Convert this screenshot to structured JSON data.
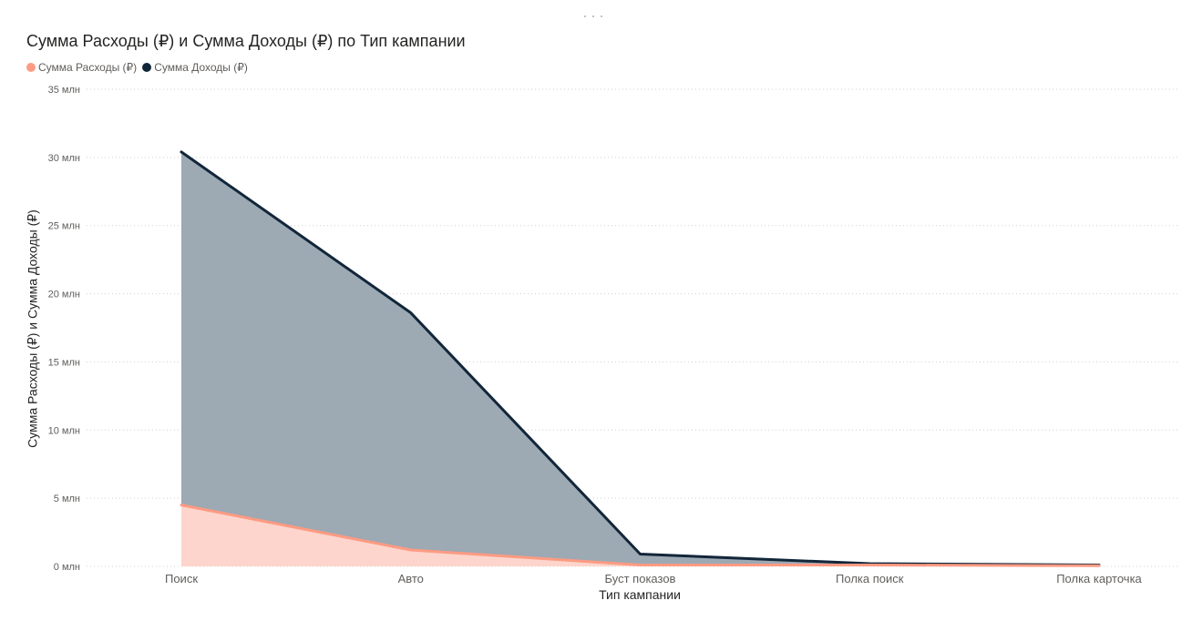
{
  "visual": {
    "title": "Сумма Расходы (₽) и Сумма Доходы (₽) по Тип кампании"
  },
  "chart_data": {
    "type": "area",
    "title": "Сумма Расходы (₽) и Сумма Доходы (₽) по Тип кампании",
    "xlabel": "Тип кампании",
    "ylabel": "Сумма Расходы (₽) и Сумма Доходы (₽)",
    "categories": [
      "Поиск",
      "Авто",
      "Буст показов",
      "Полка поиск",
      "Полка карточка"
    ],
    "series": [
      {
        "name": "Сумма Расходы (₽)",
        "values": [
          4500000,
          1200000,
          100000,
          100000,
          50000
        ],
        "color": "#FD9B83",
        "fill": "#FDD5CC"
      },
      {
        "name": "Сумма Доходы (₽)",
        "values": [
          30400000,
          18600000,
          900000,
          200000,
          100000
        ],
        "color": "#12263A",
        "fill": "#9DA9B3"
      }
    ],
    "ylim": [
      0,
      35000000
    ],
    "yticks": [
      0,
      5000000,
      10000000,
      15000000,
      20000000,
      25000000,
      30000000,
      35000000
    ],
    "ytick_labels": [
      "0 млн",
      "5 млн",
      "10 млн",
      "15 млн",
      "20 млн",
      "25 млн",
      "30 млн",
      "35 млн"
    ],
    "grid": true,
    "legend_position": "top-left"
  }
}
